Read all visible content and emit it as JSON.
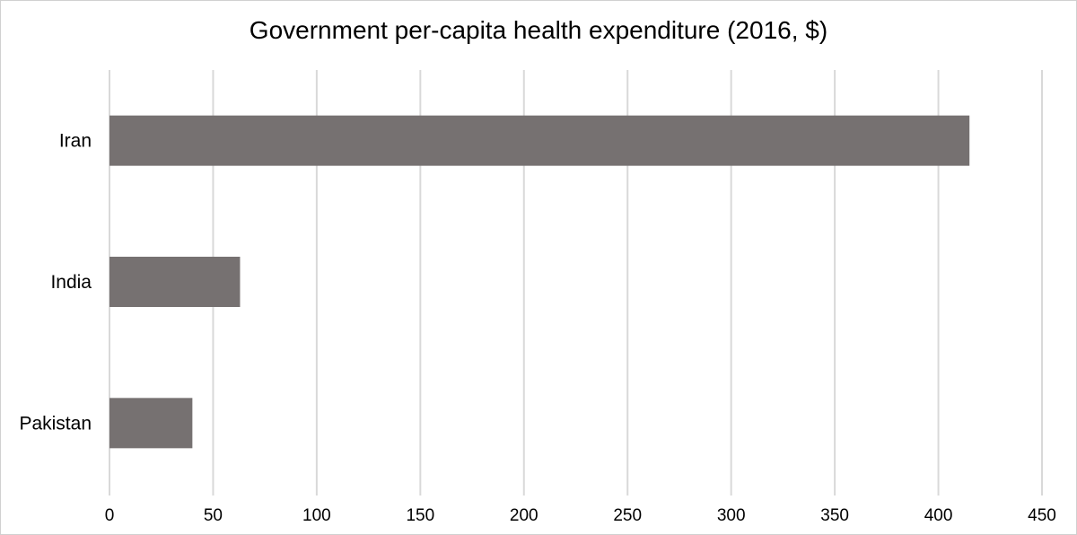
{
  "chart_data": {
    "type": "bar",
    "orientation": "horizontal",
    "title": "Government per-capita health expenditure (2016, $)",
    "categories": [
      "Iran",
      "India",
      "Pakistan"
    ],
    "values": [
      415,
      63,
      40
    ],
    "xlim": [
      0,
      450
    ],
    "xticks": [
      "0",
      "50",
      "100",
      "150",
      "200",
      "250",
      "300",
      "350",
      "400",
      "450"
    ],
    "xlabel": "",
    "ylabel": "",
    "grid": "vertical",
    "legend": "none",
    "bar_color": "#767171",
    "grid_color": "#d9d9d9"
  }
}
